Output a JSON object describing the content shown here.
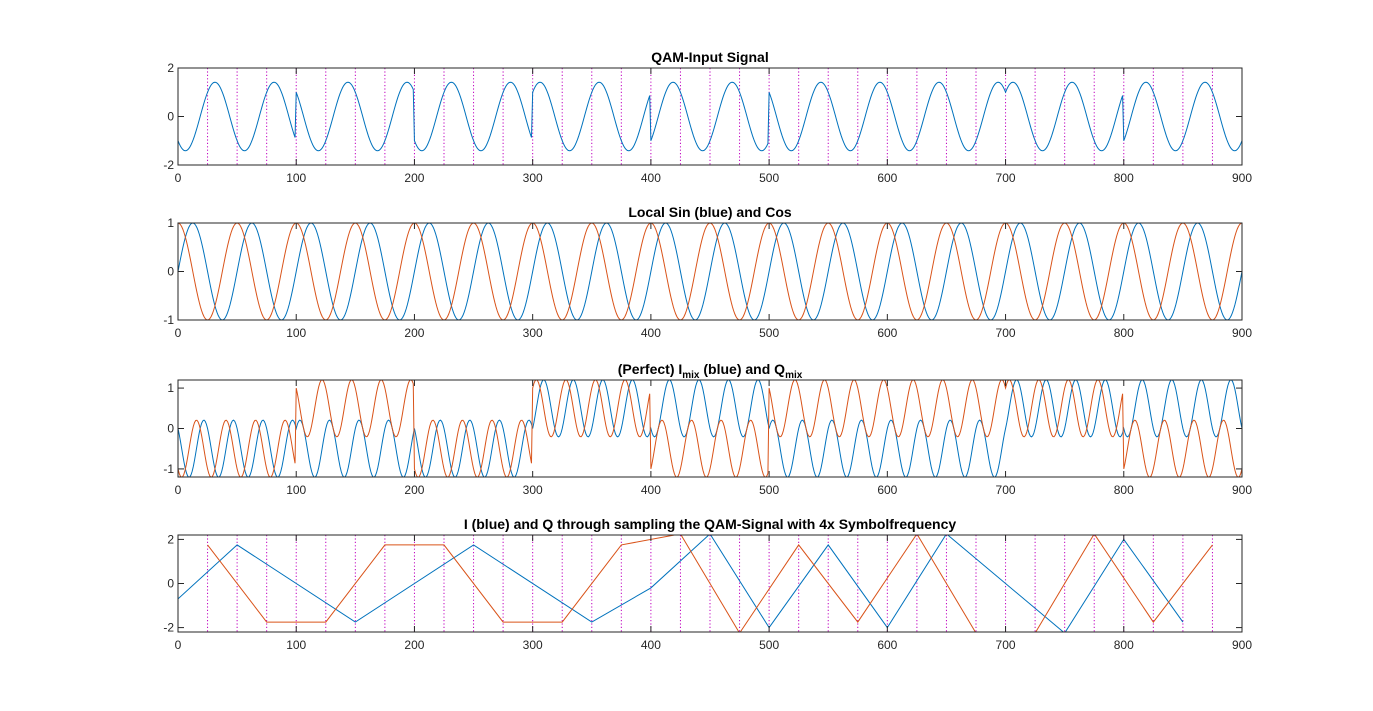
{
  "chart_data": [
    {
      "type": "line",
      "title": "QAM-Input Signal",
      "xlim": [
        0,
        900
      ],
      "ylim": [
        -2,
        2
      ],
      "xticks": [
        0,
        100,
        200,
        300,
        400,
        500,
        600,
        700,
        800,
        900
      ],
      "yticks": [
        -2,
        0,
        2
      ],
      "grid": false,
      "symbol_markers": {
        "start": 0,
        "step": 25,
        "end": 875,
        "color": "#bf00bf",
        "style": "dotted"
      },
      "series": [
        {
          "color": "#0072bd",
          "form": "carrier",
          "period": 50,
          "symbols": [
            [
              -1,
              -1
            ],
            [
              1,
              -1
            ],
            [
              -1,
              -1
            ],
            [
              1,
              1
            ],
            [
              -1,
              1
            ],
            [
              1,
              -1
            ],
            [
              1,
              -1
            ],
            [
              1,
              1
            ],
            [
              -1,
              1
            ]
          ]
        }
      ]
    },
    {
      "type": "line",
      "title": "Local Sin (blue) and Cos",
      "xlim": [
        0,
        900
      ],
      "ylim": [
        -1,
        1
      ],
      "xticks": [
        0,
        100,
        200,
        300,
        400,
        500,
        600,
        700,
        800,
        900
      ],
      "yticks": [
        -1,
        0,
        1
      ],
      "grid": false,
      "series": [
        {
          "color": "#0072bd",
          "form": "sin",
          "amplitude": 1,
          "period": 50
        },
        {
          "color": "#d95319",
          "form": "cos",
          "amplitude": 1,
          "period": 50
        }
      ]
    },
    {
      "type": "line",
      "title_parts": [
        {
          "text": "(Perfect) I",
          "sub": false
        },
        {
          "text": "mix",
          "sub": true
        },
        {
          "text": " (blue) and Q",
          "sub": false
        },
        {
          "text": "mix",
          "sub": true
        }
      ],
      "xlim": [
        0,
        900
      ],
      "ylim": [
        -1.2,
        1.2
      ],
      "xticks": [
        0,
        100,
        200,
        300,
        400,
        500,
        600,
        700,
        800,
        900
      ],
      "yticks": [
        -1,
        0,
        1
      ],
      "grid": false,
      "series": [
        {
          "color": "#0072bd",
          "form": "i-mix",
          "period": 50,
          "symbols": [
            [
              -1,
              -1
            ],
            [
              1,
              -1
            ],
            [
              -1,
              -1
            ],
            [
              1,
              1
            ],
            [
              -1,
              1
            ],
            [
              1,
              -1
            ],
            [
              1,
              -1
            ],
            [
              1,
              1
            ],
            [
              -1,
              1
            ]
          ]
        },
        {
          "color": "#d95319",
          "form": "q-mix",
          "period": 50,
          "symbols": [
            [
              -1,
              -1
            ],
            [
              1,
              -1
            ],
            [
              -1,
              -1
            ],
            [
              1,
              1
            ],
            [
              -1,
              1
            ],
            [
              1,
              -1
            ],
            [
              1,
              -1
            ],
            [
              1,
              1
            ],
            [
              -1,
              1
            ]
          ]
        }
      ]
    },
    {
      "type": "line",
      "title": "I (blue) and Q through sampling the QAM-Signal with 4x Symbolfrequency",
      "xlim": [
        0,
        900
      ],
      "ylim": [
        -2.2,
        2.2
      ],
      "xticks": [
        0,
        100,
        200,
        300,
        400,
        500,
        600,
        700,
        800,
        900
      ],
      "yticks": [
        -2,
        0,
        2
      ],
      "grid": false,
      "symbol_markers": {
        "start": 0,
        "step": 25,
        "end": 875,
        "color": "#bf00bf",
        "style": "dotted"
      },
      "series": [
        {
          "color": "#0072bd",
          "x": [
            0,
            50,
            150,
            250,
            350,
            400,
            450,
            500,
            550,
            600,
            650,
            750,
            800,
            850
          ],
          "y": [
            -0.7,
            1.75,
            -1.75,
            1.75,
            -1.75,
            -0.2,
            2.25,
            -2,
            1.75,
            -2,
            2.25,
            -2.25,
            2,
            -1.75
          ]
        },
        {
          "color": "#d95319",
          "x": [
            25,
            75,
            125,
            175,
            225,
            275,
            325,
            375,
            425,
            475,
            525,
            575,
            625,
            675,
            725,
            775,
            825,
            875
          ],
          "y": [
            1.75,
            -1.75,
            -1.75,
            1.75,
            1.75,
            -1.75,
            -1.75,
            1.75,
            2.25,
            -2.25,
            1.75,
            -1.75,
            2.25,
            -2.25,
            -2.25,
            2.25,
            -1.75,
            1.75
          ]
        }
      ]
    }
  ]
}
